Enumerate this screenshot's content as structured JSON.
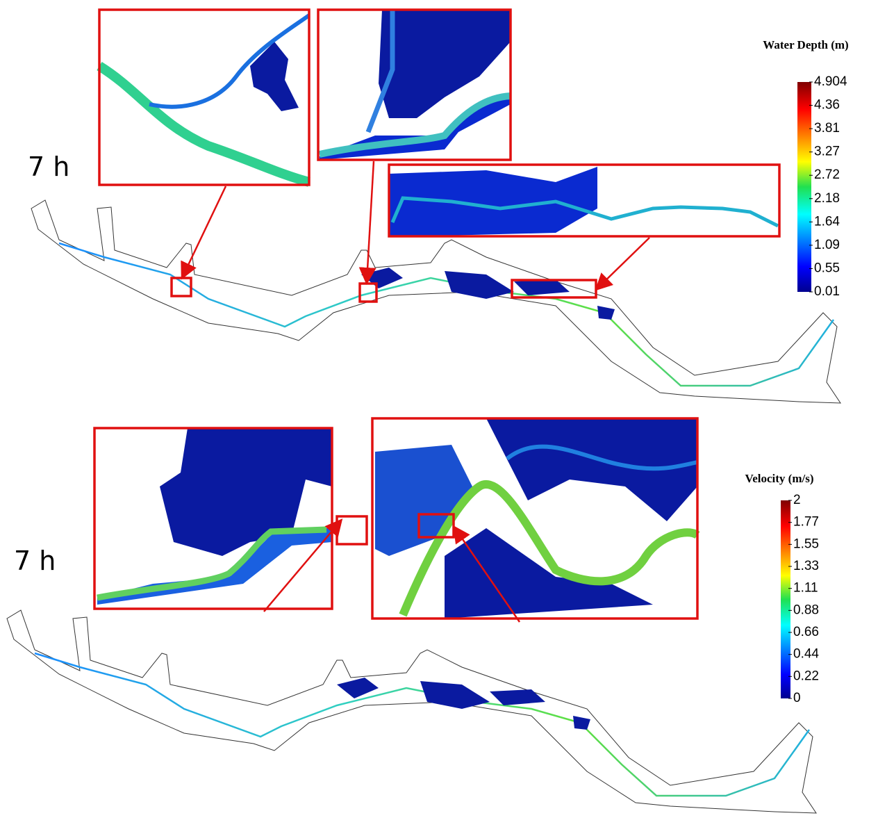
{
  "panels": [
    {
      "time_label": "7 h",
      "legend": {
        "title": "Water Depth (m)",
        "ticks": [
          "4.904",
          "4.36",
          "3.81",
          "3.27",
          "2.72",
          "2.18",
          "1.64",
          "1.09",
          "0.55",
          "0.01"
        ]
      }
    },
    {
      "time_label": "7 h",
      "legend": {
        "title": "Velocity (m/s)",
        "ticks": [
          "2",
          "1.77",
          "1.55",
          "1.33",
          "1.11",
          "0.88",
          "0.66",
          "0.44",
          "0.22",
          "0"
        ]
      }
    }
  ]
}
